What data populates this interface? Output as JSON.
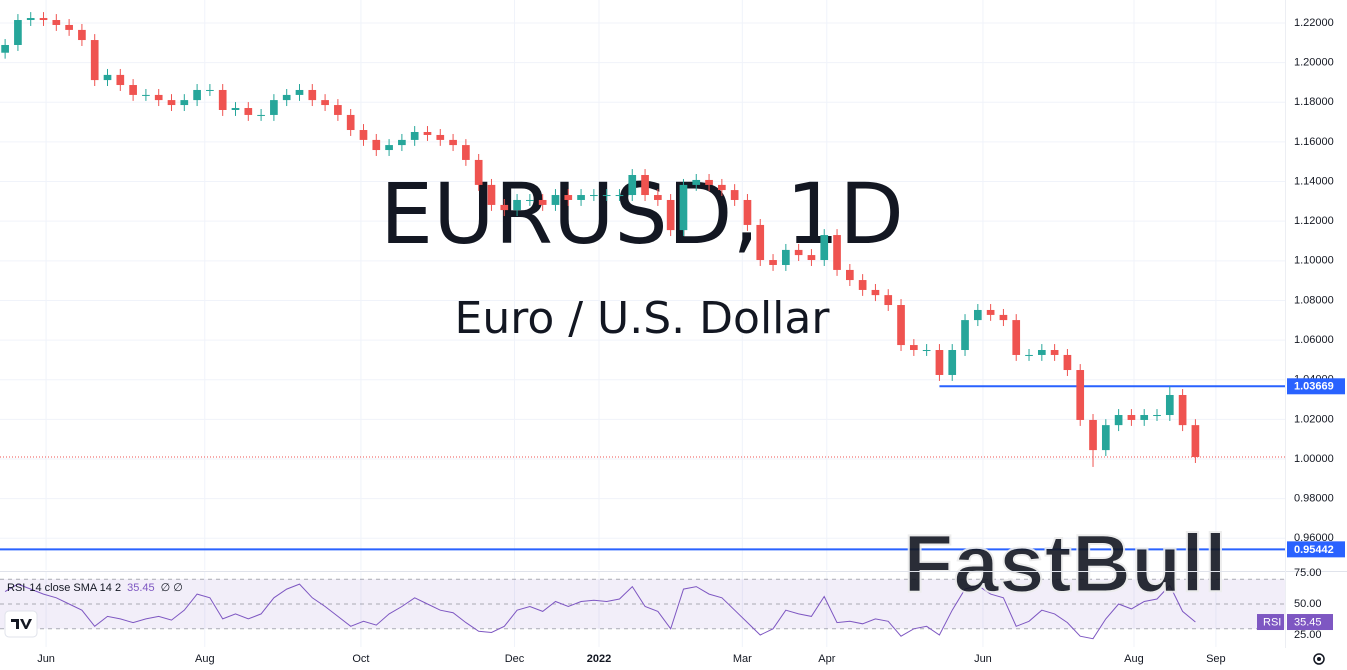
{
  "chart_data": [
    {
      "type": "candlestick",
      "watermark_symbol": "EURUSD, 1D",
      "watermark_name": "Euro / U.S. Dollar",
      "up_color": "#26a69a",
      "down_color": "#ef5350",
      "x": [
        0,
        5,
        10,
        15,
        20,
        25,
        30,
        35,
        40,
        45,
        50,
        55,
        60,
        65,
        70,
        75,
        80,
        85,
        90,
        95,
        100,
        105,
        110,
        115,
        120,
        125,
        130,
        135,
        140,
        145,
        150,
        155,
        160,
        165,
        170,
        175,
        180,
        185,
        190,
        195,
        200,
        205,
        210,
        215,
        220,
        225,
        230,
        235,
        240,
        245,
        250,
        255,
        260,
        265,
        270,
        275,
        280,
        285,
        290,
        295,
        300,
        305,
        310,
        315,
        320,
        325,
        330,
        335,
        340,
        345,
        350,
        355,
        360,
        365,
        370,
        375,
        380,
        385,
        390,
        395,
        400,
        405,
        410,
        415,
        420,
        425,
        430,
        435,
        440,
        445,
        450,
        455,
        460,
        465
      ],
      "open": [
        1.205,
        1.2089,
        1.2215,
        1.2225,
        1.2215,
        1.219,
        1.2165,
        1.2114,
        1.1912,
        1.1938,
        1.1887,
        1.1837,
        1.1837,
        1.1811,
        1.1786,
        1.1811,
        1.1862,
        1.1862,
        1.1761,
        1.1771,
        1.1736,
        1.1736,
        1.1811,
        1.1837,
        1.1862,
        1.1811,
        1.1786,
        1.1736,
        1.166,
        1.161,
        1.1559,
        1.1584,
        1.161,
        1.165,
        1.1635,
        1.161,
        1.1584,
        1.1509,
        1.1383,
        1.1282,
        1.1256,
        1.1307,
        1.1307,
        1.1282,
        1.1332,
        1.1307,
        1.1332,
        1.1332,
        1.1332,
        1.1332,
        1.1433,
        1.1332,
        1.1307,
        1.1155,
        1.1383,
        1.1408,
        1.1383,
        1.1357,
        1.1307,
        1.1181,
        1.1004,
        1.0979,
        1.1055,
        1.1029,
        1.1004,
        1.113,
        1.0954,
        1.0903,
        1.0853,
        1.0827,
        1.0777,
        1.0575,
        1.055,
        1.055,
        1.0424,
        1.055,
        1.0701,
        1.0752,
        1.0727,
        1.0701,
        1.0525,
        1.0525,
        1.055,
        1.0525,
        1.0449,
        1.0197,
        1.0045,
        1.0171,
        1.0222,
        1.0197,
        1.0222,
        1.0222,
        1.0323,
        1.0171
      ],
      "high": [
        1.2119,
        1.2245,
        1.2255,
        1.2255,
        1.2245,
        1.222,
        1.2195,
        1.2144,
        1.1968,
        1.1968,
        1.1917,
        1.1867,
        1.1867,
        1.1841,
        1.1841,
        1.1892,
        1.1892,
        1.1892,
        1.1801,
        1.1801,
        1.1766,
        1.1841,
        1.1867,
        1.1892,
        1.1892,
        1.1841,
        1.1816,
        1.1766,
        1.169,
        1.164,
        1.1614,
        1.164,
        1.168,
        1.168,
        1.1665,
        1.164,
        1.1614,
        1.1539,
        1.1413,
        1.1312,
        1.1337,
        1.1337,
        1.1337,
        1.1362,
        1.1362,
        1.1362,
        1.1362,
        1.1362,
        1.1362,
        1.1463,
        1.1463,
        1.1362,
        1.1337,
        1.1413,
        1.1438,
        1.1438,
        1.1413,
        1.1387,
        1.1337,
        1.1211,
        1.1034,
        1.1085,
        1.1085,
        1.1059,
        1.116,
        1.116,
        1.0984,
        1.0933,
        1.0883,
        1.0857,
        1.0807,
        1.0605,
        1.058,
        1.058,
        1.058,
        1.0731,
        1.0782,
        1.0782,
        1.0757,
        1.0731,
        1.0555,
        1.058,
        1.058,
        1.0555,
        1.0479,
        1.0227,
        1.0201,
        1.0252,
        1.0252,
        1.0252,
        1.0252,
        1.0366,
        1.0353,
        1.0201
      ],
      "low": [
        1.202,
        1.2059,
        1.2185,
        1.2185,
        1.216,
        1.2135,
        1.2084,
        1.1882,
        1.1882,
        1.1857,
        1.1807,
        1.1807,
        1.1781,
        1.1756,
        1.1756,
        1.1781,
        1.1832,
        1.1731,
        1.1731,
        1.1706,
        1.1706,
        1.1706,
        1.1781,
        1.1807,
        1.1781,
        1.1756,
        1.1706,
        1.163,
        1.158,
        1.1529,
        1.1529,
        1.1554,
        1.158,
        1.1605,
        1.158,
        1.1554,
        1.1479,
        1.1353,
        1.1252,
        1.1226,
        1.1226,
        1.1277,
        1.1252,
        1.1252,
        1.1277,
        1.1277,
        1.1302,
        1.1302,
        1.1302,
        1.1302,
        1.1302,
        1.1277,
        1.1125,
        1.1125,
        1.1353,
        1.1353,
        1.1327,
        1.1277,
        1.1151,
        1.0974,
        1.0949,
        1.0949,
        1.0999,
        1.0974,
        1.0974,
        1.0924,
        1.0873,
        1.0823,
        1.0797,
        1.0747,
        1.0545,
        1.052,
        1.052,
        1.0394,
        1.0394,
        1.052,
        1.0671,
        1.0697,
        1.0671,
        1.0495,
        1.0495,
        1.0495,
        1.0495,
        1.0419,
        1.0167,
        0.996,
        1.0015,
        1.0141,
        1.0167,
        1.0167,
        1.0192,
        1.0192,
        1.0141,
        0.998
      ],
      "close": [
        1.2089,
        1.2215,
        1.2225,
        1.2215,
        1.219,
        1.2165,
        1.2114,
        1.1912,
        1.1938,
        1.1887,
        1.1837,
        1.1837,
        1.1811,
        1.1786,
        1.1811,
        1.1862,
        1.1862,
        1.1761,
        1.1771,
        1.1736,
        1.1736,
        1.1811,
        1.1837,
        1.1862,
        1.1811,
        1.1786,
        1.1736,
        1.166,
        1.161,
        1.1559,
        1.1584,
        1.161,
        1.165,
        1.1635,
        1.161,
        1.1584,
        1.1509,
        1.1383,
        1.1282,
        1.1256,
        1.1307,
        1.1307,
        1.1282,
        1.1332,
        1.1307,
        1.1332,
        1.1332,
        1.1332,
        1.1332,
        1.1433,
        1.1332,
        1.1307,
        1.1155,
        1.1383,
        1.1408,
        1.1383,
        1.1357,
        1.1307,
        1.1181,
        1.1004,
        1.0979,
        1.1055,
        1.1029,
        1.1004,
        1.113,
        1.0954,
        1.0903,
        1.0853,
        1.0827,
        1.0777,
        1.0575,
        1.055,
        1.055,
        1.0424,
        1.055,
        1.0701,
        1.0752,
        1.0727,
        1.0701,
        1.0525,
        1.0525,
        1.055,
        1.0525,
        1.0449,
        1.0197,
        1.0045,
        1.0171,
        1.0222,
        1.0197,
        1.0222,
        1.0222,
        1.0323,
        1.0171,
        1.001
      ],
      "xlim": [
        -2,
        500
      ],
      "xticks": [
        {
          "value": 16,
          "label": "Jun"
        },
        {
          "value": 78,
          "label": "Aug"
        },
        {
          "value": 139,
          "label": "Oct"
        },
        {
          "value": 199,
          "label": "Dec"
        },
        {
          "value": 232,
          "label": "2022"
        },
        {
          "value": 288,
          "label": "Mar"
        },
        {
          "value": 321,
          "label": "Apr"
        },
        {
          "value": 382,
          "label": "Jun"
        },
        {
          "value": 441,
          "label": "Aug"
        },
        {
          "value": 473,
          "label": "Sep"
        }
      ],
      "ylim": [
        0.944,
        1.2316
      ],
      "yticks": [
        {
          "value": 0.96,
          "label": "0.96000"
        },
        {
          "value": 0.98,
          "label": "0.98000"
        },
        {
          "value": 1.0,
          "label": "1.00000"
        },
        {
          "value": 1.02,
          "label": "1.02000"
        },
        {
          "value": 1.04,
          "label": "1.04000"
        },
        {
          "value": 1.06,
          "label": "1.06000"
        },
        {
          "value": 1.08,
          "label": "1.08000"
        },
        {
          "value": 1.1,
          "label": "1.10000"
        },
        {
          "value": 1.12,
          "label": "1.12000"
        },
        {
          "value": 1.14,
          "label": "1.14000"
        },
        {
          "value": 1.16,
          "label": "1.16000"
        },
        {
          "value": 1.18,
          "label": "1.18000"
        },
        {
          "value": 1.2,
          "label": "1.20000"
        },
        {
          "value": 1.22,
          "label": "1.22000"
        }
      ],
      "grid": true,
      "levels": [
        {
          "value": 1.03669,
          "start": 365,
          "color": "#2962ff"
        },
        {
          "value": 0.95442,
          "color": "#2962ff"
        }
      ],
      "last_price_color": "#ef5350"
    },
    {
      "type": "line",
      "name": "RSI",
      "params": "14 close SMA 14 2",
      "extra": "∅ ∅",
      "color": "#7e57c2",
      "values": [
        60,
        66,
        62,
        58,
        55,
        50,
        45,
        32,
        40,
        38,
        35,
        38,
        40,
        37,
        45,
        58,
        55,
        38,
        42,
        38,
        42,
        55,
        62,
        66,
        55,
        48,
        40,
        32,
        36,
        33,
        42,
        48,
        55,
        50,
        45,
        43,
        35,
        28,
        27,
        32,
        45,
        48,
        44,
        52,
        48,
        52,
        53,
        52,
        54,
        64,
        48,
        44,
        30,
        62,
        64,
        58,
        55,
        45,
        35,
        25,
        30,
        45,
        42,
        40,
        56,
        35,
        36,
        34,
        38,
        36,
        24,
        30,
        32,
        25,
        45,
        62,
        65,
        58,
        55,
        32,
        36,
        45,
        42,
        35,
        24,
        22,
        38,
        50,
        46,
        52,
        54,
        65,
        44,
        35.45
      ],
      "ylim": [
        15.3,
        75.8
      ],
      "yticks": [
        {
          "value": 25,
          "label": "25.00"
        },
        {
          "value": 50,
          "label": "50.00"
        },
        {
          "value": 75,
          "label": "75.00"
        }
      ],
      "band": [
        30,
        70
      ],
      "levels": [
        70,
        50,
        30
      ]
    }
  ],
  "brand_watermark": "FastBull"
}
